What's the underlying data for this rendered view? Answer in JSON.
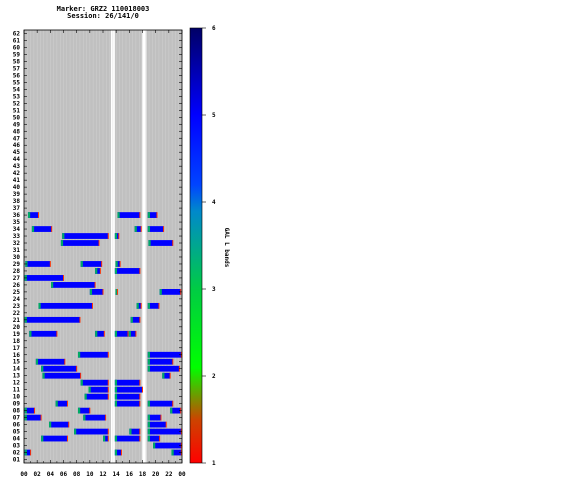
{
  "chart_data": {
    "type": "heatmap",
    "title": "Marker: GRZ2 110018003",
    "subtitle": "Session: 26/141/0",
    "xlabel": "",
    "ylabel": "",
    "x_tick_labels": [
      "00",
      "02",
      "04",
      "06",
      "08",
      "10",
      "12",
      "14",
      "16",
      "18",
      "20",
      "22",
      "00"
    ],
    "x_range": [
      0,
      24
    ],
    "y_range": [
      1,
      62
    ],
    "background_color": "#c0c0c0",
    "gap_columns": [
      [
        13.2,
        13.8
      ],
      [
        17.9,
        18.6
      ]
    ],
    "colorbar": {
      "label": "GAL L bands",
      "range": [
        1,
        6
      ],
      "ticks": [
        "1",
        "2",
        "3",
        "4",
        "5",
        "6"
      ]
    },
    "series": [
      {
        "row": 36,
        "segments": [
          [
            0.6,
            2.2
          ],
          [
            14.2,
            17.6
          ],
          [
            18.8,
            20.2
          ]
        ]
      },
      {
        "row": 34,
        "segments": [
          [
            1.2,
            4.2
          ],
          [
            16.8,
            17.8
          ],
          [
            18.8,
            21.2
          ]
        ]
      },
      {
        "row": 33,
        "segments": [
          [
            5.8,
            12.8
          ],
          [
            13.8,
            14.4
          ]
        ]
      },
      {
        "row": 32,
        "segments": [
          [
            5.6,
            11.4
          ],
          [
            18.9,
            22.6
          ]
        ]
      },
      {
        "row": 29,
        "segments": [
          [
            0.2,
            4.0
          ],
          [
            8.6,
            11.8
          ],
          [
            13.9,
            14.6
          ]
        ]
      },
      {
        "row": 28,
        "segments": [
          [
            10.8,
            11.6
          ],
          [
            13.8,
            17.6
          ]
        ]
      },
      {
        "row": 27,
        "segments": [
          [
            0.1,
            6.0
          ]
        ]
      },
      {
        "row": 26,
        "segments": [
          [
            4.1,
            10.8
          ]
        ]
      },
      {
        "row": 25,
        "segments": [
          [
            10.0,
            12.0
          ],
          [
            13.9,
            14.2
          ],
          [
            20.6,
            23.8
          ]
        ]
      },
      {
        "row": 23,
        "segments": [
          [
            2.2,
            10.4
          ],
          [
            17.1,
            17.8
          ],
          [
            18.8,
            20.5
          ]
        ]
      },
      {
        "row": 21,
        "segments": [
          [
            0.1,
            8.5
          ],
          [
            16.2,
            17.6
          ]
        ]
      },
      {
        "row": 19,
        "segments": [
          [
            0.8,
            5.0
          ],
          [
            10.8,
            12.2
          ],
          [
            13.8,
            15.8
          ],
          [
            15.9,
            17.0
          ]
        ]
      },
      {
        "row": 16,
        "segments": [
          [
            8.2,
            12.8
          ],
          [
            18.8,
            23.9
          ]
        ]
      },
      {
        "row": 15,
        "segments": [
          [
            1.8,
            6.2
          ],
          [
            18.8,
            22.6
          ]
        ]
      },
      {
        "row": 14,
        "segments": [
          [
            2.6,
            8.0
          ],
          [
            18.8,
            23.6
          ]
        ]
      },
      {
        "row": 13,
        "segments": [
          [
            2.8,
            8.6
          ],
          [
            21.0,
            22.2
          ]
        ]
      },
      {
        "row": 12,
        "segments": [
          [
            8.6,
            12.8
          ],
          [
            13.8,
            17.6
          ]
        ]
      },
      {
        "row": 11,
        "segments": [
          [
            9.8,
            12.8
          ],
          [
            13.8,
            18.0
          ]
        ]
      },
      {
        "row": 10,
        "segments": [
          [
            9.2,
            12.8
          ],
          [
            13.8,
            17.6
          ]
        ]
      },
      {
        "row": 9,
        "segments": [
          [
            4.8,
            6.6
          ],
          [
            13.8,
            17.6
          ],
          [
            18.8,
            22.6
          ]
        ]
      },
      {
        "row": 8,
        "segments": [
          [
            0.1,
            1.6
          ],
          [
            8.2,
            10.0
          ],
          [
            22.2,
            23.8
          ]
        ]
      },
      {
        "row": 7,
        "segments": [
          [
            0.1,
            2.6
          ],
          [
            9.0,
            12.4
          ],
          [
            18.8,
            20.8
          ]
        ]
      },
      {
        "row": 6,
        "segments": [
          [
            3.8,
            6.8
          ],
          [
            18.8,
            21.6
          ]
        ]
      },
      {
        "row": 5,
        "segments": [
          [
            7.6,
            12.8
          ],
          [
            16.0,
            17.6
          ],
          [
            18.8,
            23.9
          ]
        ]
      },
      {
        "row": 4,
        "segments": [
          [
            2.6,
            6.6
          ],
          [
            12.0,
            12.8
          ],
          [
            13.8,
            17.6
          ],
          [
            18.8,
            20.6
          ]
        ]
      },
      {
        "row": 3,
        "segments": [
          [
            19.6,
            23.9
          ]
        ]
      },
      {
        "row": 2,
        "segments": [
          [
            0.1,
            1.0
          ],
          [
            13.8,
            14.8
          ],
          [
            22.4,
            23.9
          ]
        ]
      }
    ]
  }
}
